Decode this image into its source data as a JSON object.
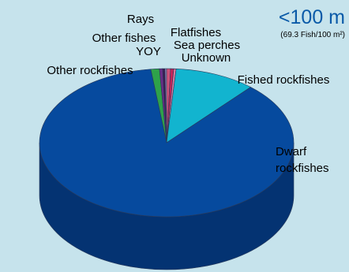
{
  "chart_data": {
    "type": "pie",
    "title": "<100 m",
    "subtitle": "(69.3 Fish/100 m²)",
    "slices": [
      {
        "label": "Fished rockfishes",
        "value": 10.3,
        "color": "#12b4cf",
        "side_color": "#0e8aa0"
      },
      {
        "label": "Dwarf rockfishes",
        "display_lines": [
          "Dwarf",
          "rockfishes"
        ],
        "value": 86.5,
        "color": "#064a9e",
        "side_color": "#043372"
      },
      {
        "label": "Other rockfishes",
        "value": 1.1,
        "color": "#2ea24a",
        "side_color": "#1f7434"
      },
      {
        "label": "Other fishes",
        "value": 0.4,
        "color": "#6a2c88",
        "side_color": "#4a1f60"
      },
      {
        "label": "Rays",
        "value": 0.3,
        "color": "#3a1a52",
        "side_color": "#28123a"
      },
      {
        "label": "YOY",
        "value": 0.2,
        "color": "#9a8fc0",
        "side_color": "#6f6690"
      },
      {
        "label": "Flatfishes",
        "value": 0.5,
        "color": "#d0527a",
        "side_color": "#9a3c5a"
      },
      {
        "label": "Sea perches",
        "value": 0.4,
        "color": "#c4245a",
        "side_color": "#8e1a42"
      },
      {
        "label": "Unknown",
        "value": 0.3,
        "color": "#e07aa0",
        "side_color": "#a85a78"
      }
    ]
  }
}
